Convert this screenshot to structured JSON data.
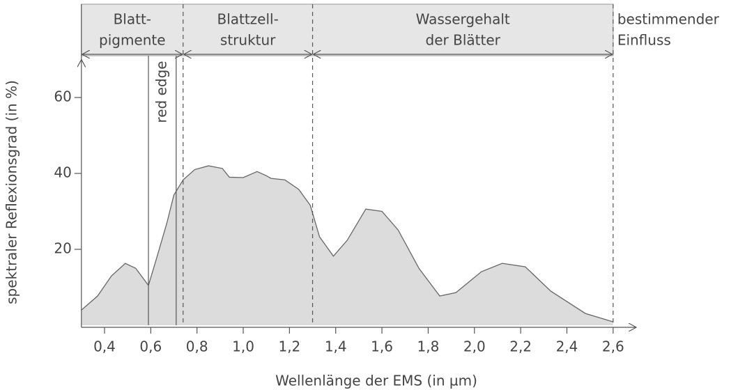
{
  "chart_data": {
    "type": "area",
    "xlabel": "Wellenlänge der EMS (in µm)",
    "ylabel": "spektraler Reflexionsgrad (in %)",
    "color": "#dcdcdc",
    "x": [
      0.3,
      0.37,
      0.43,
      0.49,
      0.535,
      0.59,
      0.626,
      0.67,
      0.7,
      0.74,
      0.79,
      0.85,
      0.91,
      0.94,
      1.0,
      1.06,
      1.1,
      1.12,
      1.18,
      1.24,
      1.29,
      1.33,
      1.39,
      1.45,
      1.53,
      1.6,
      1.67,
      1.76,
      1.85,
      1.92,
      2.03,
      2.12,
      2.22,
      2.33,
      2.48,
      2.6
    ],
    "values": [
      4,
      7.7,
      13,
      16.3,
      15,
      10.5,
      17.8,
      27,
      34.3,
      38.3,
      41,
      42,
      41.3,
      39,
      38.9,
      40.5,
      39.4,
      38.7,
      38.3,
      35.8,
      31.6,
      23.3,
      18.2,
      22.4,
      30.6,
      30,
      25.1,
      15,
      7.7,
      8.6,
      14.1,
      16.3,
      15.4,
      9,
      3.1,
      0.9
    ],
    "xlim": [
      0.3,
      2.7
    ],
    "ylim": [
      0,
      70
    ],
    "xticks": [
      {
        "value": 0.4,
        "label": "0,4"
      },
      {
        "value": 0.6,
        "label": "0,6"
      },
      {
        "value": 0.8,
        "label": "0,8"
      },
      {
        "value": 1.0,
        "label": "1,0"
      },
      {
        "value": 1.2,
        "label": "1,2"
      },
      {
        "value": 1.4,
        "label": "1,4"
      },
      {
        "value": 1.6,
        "label": "1,6"
      },
      {
        "value": 1.8,
        "label": "1,8"
      },
      {
        "value": 2.0,
        "label": "2,0"
      },
      {
        "value": 2.2,
        "label": "2,2"
      },
      {
        "value": 2.4,
        "label": "2,4"
      },
      {
        "value": 2.6,
        "label": "2,6"
      }
    ],
    "yticks": [
      20,
      40,
      60
    ],
    "regions": [
      {
        "lines": [
          "Blatt-",
          "pigmente"
        ],
        "range": [
          0.3,
          0.74
        ]
      },
      {
        "lines": [
          "Blattzell-",
          "struktur"
        ],
        "range": [
          0.74,
          1.3
        ]
      },
      {
        "lines": [
          "Wassergehalt",
          "der Blätter"
        ],
        "range": [
          1.3,
          2.6
        ]
      }
    ],
    "regions_caption": [
      "bestimmender",
      "Einfluss"
    ],
    "red_edge": {
      "label": "red edge",
      "range": [
        0.59,
        0.71
      ]
    }
  }
}
